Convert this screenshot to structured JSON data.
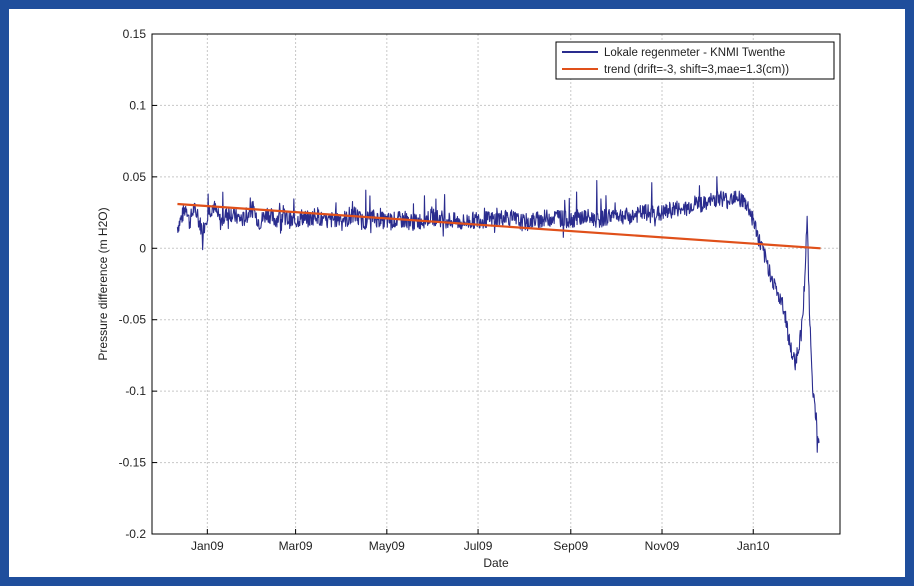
{
  "colors": {
    "frame": "#1f4e9c",
    "series_primary": "#2a2c8e",
    "series_trend": "#e0501a",
    "grid": "#c8c8c8",
    "axis": "#000000"
  },
  "chart_data": {
    "type": "line",
    "title": "",
    "xlabel": "Date",
    "ylabel": "Pressure difference (m H2O)",
    "xlim": [
      "2008-11-25",
      "2010-02-28"
    ],
    "ylim": [
      -0.2,
      0.15
    ],
    "grid": true,
    "legend_position": "top-right",
    "x_ticks": [
      {
        "date": "2009-01-01",
        "label": "Jan09"
      },
      {
        "date": "2009-03-01",
        "label": "Mar09"
      },
      {
        "date": "2009-05-01",
        "label": "May09"
      },
      {
        "date": "2009-07-01",
        "label": "Jul09"
      },
      {
        "date": "2009-09-01",
        "label": "Sep09"
      },
      {
        "date": "2009-11-01",
        "label": "Nov09"
      },
      {
        "date": "2010-01-01",
        "label": "Jan10"
      }
    ],
    "y_ticks": [
      {
        "value": 0.15,
        "label": "0.15"
      },
      {
        "value": 0.1,
        "label": "0.1"
      },
      {
        "value": 0.05,
        "label": "0.05"
      },
      {
        "value": 0,
        "label": "0"
      },
      {
        "value": -0.05,
        "label": "-0.05"
      },
      {
        "value": -0.1,
        "label": "-0.1"
      },
      {
        "value": -0.15,
        "label": "-0.15"
      },
      {
        "value": -0.2,
        "label": "-0.2"
      }
    ],
    "series": [
      {
        "name": "Lokale regenmeter - KNMI Twenthe",
        "style": "noisy-line",
        "x": [
          "2008-12-12",
          "2008-12-15",
          "2008-12-18",
          "2008-12-20",
          "2008-12-23",
          "2008-12-26",
          "2008-12-29",
          "2009-01-01",
          "2009-01-05",
          "2009-01-10",
          "2009-01-15",
          "2009-01-20",
          "2009-01-25",
          "2009-01-31",
          "2009-02-05",
          "2009-02-10",
          "2009-02-15",
          "2009-02-20",
          "2009-02-28",
          "2009-03-05",
          "2009-03-10",
          "2009-03-15",
          "2009-03-20",
          "2009-03-31",
          "2009-04-05",
          "2009-04-10",
          "2009-04-15",
          "2009-04-20",
          "2009-04-30",
          "2009-05-10",
          "2009-05-20",
          "2009-05-31",
          "2009-06-10",
          "2009-06-20",
          "2009-06-30",
          "2009-07-10",
          "2009-07-20",
          "2009-07-31",
          "2009-08-10",
          "2009-08-20",
          "2009-08-31",
          "2009-09-10",
          "2009-09-20",
          "2009-09-30",
          "2009-10-10",
          "2009-10-20",
          "2009-10-31",
          "2009-11-10",
          "2009-11-15",
          "2009-11-20",
          "2009-11-25",
          "2009-11-30",
          "2009-12-05",
          "2009-12-10",
          "2009-12-15",
          "2009-12-20",
          "2009-12-24",
          "2009-12-28",
          "2010-01-01",
          "2010-01-05",
          "2010-01-10",
          "2010-01-15",
          "2010-01-20",
          "2010-01-23",
          "2010-01-25",
          "2010-01-27",
          "2010-01-29",
          "2010-01-31",
          "2010-02-02",
          "2010-02-04",
          "2010-02-06",
          "2010-02-08",
          "2010-02-10",
          "2010-02-12",
          "2010-02-14"
        ],
        "y": [
          0.015,
          0.022,
          0.03,
          0.018,
          0.028,
          0.02,
          0.012,
          0.024,
          0.03,
          0.018,
          0.026,
          0.022,
          0.02,
          0.028,
          0.018,
          0.025,
          0.02,
          0.023,
          0.018,
          0.022,
          0.02,
          0.024,
          0.018,
          0.022,
          0.02,
          0.024,
          0.018,
          0.022,
          0.019,
          0.02,
          0.018,
          0.022,
          0.02,
          0.018,
          0.02,
          0.02,
          0.022,
          0.018,
          0.02,
          0.022,
          0.02,
          0.022,
          0.02,
          0.024,
          0.022,
          0.025,
          0.024,
          0.028,
          0.026,
          0.03,
          0.032,
          0.03,
          0.034,
          0.036,
          0.033,
          0.038,
          0.034,
          0.03,
          0.02,
          0.005,
          -0.01,
          -0.025,
          -0.04,
          -0.05,
          -0.065,
          -0.075,
          -0.08,
          -0.07,
          -0.06,
          -0.03,
          0.02,
          -0.06,
          -0.1,
          -0.12,
          -0.14
        ]
      },
      {
        "name": "trend (drift=-3, shift=3,mae=1.3(cm))",
        "style": "line",
        "x": [
          "2008-12-12",
          "2010-02-15"
        ],
        "y": [
          0.031,
          0.0
        ]
      }
    ]
  }
}
